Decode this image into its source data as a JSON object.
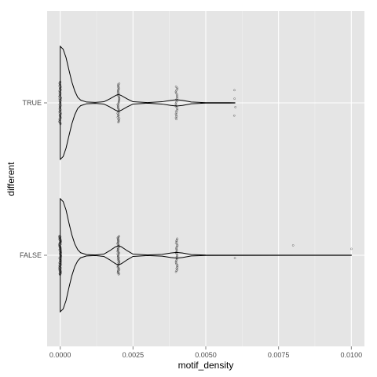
{
  "chart_data": {
    "type": "violin",
    "orientation": "horizontal",
    "xlabel": "motif_density",
    "ylabel": "different",
    "xlim": [
      -0.00045,
      0.01045
    ],
    "x_ticks": [
      0,
      0.0025,
      0.005,
      0.0075,
      0.01
    ],
    "x_tick_labels": [
      "0.0000",
      "0.0025",
      "0.0050",
      "0.0075",
      "0.0100"
    ],
    "categories": [
      "TRUE",
      "FALSE"
    ],
    "grid": true,
    "panel_background": "#e5e5e5",
    "grid_color": "#ffffff",
    "violin_color": "#000000",
    "point_color": "#000000",
    "groups": [
      {
        "category": "TRUE",
        "x_max": 0.006,
        "density_profile": [
          {
            "x": 0.0,
            "w": 1.0
          },
          {
            "x": 0.0001,
            "w": 0.95
          },
          {
            "x": 0.0002,
            "w": 0.8
          },
          {
            "x": 0.0003,
            "w": 0.58
          },
          {
            "x": 0.0004,
            "w": 0.37
          },
          {
            "x": 0.0005,
            "w": 0.21
          },
          {
            "x": 0.0006,
            "w": 0.1
          },
          {
            "x": 0.0007,
            "w": 0.05
          },
          {
            "x": 0.0009,
            "w": 0.015
          },
          {
            "x": 0.0012,
            "w": 0.008
          },
          {
            "x": 0.0015,
            "w": 0.02
          },
          {
            "x": 0.0017,
            "w": 0.07
          },
          {
            "x": 0.0019,
            "w": 0.13
          },
          {
            "x": 0.002,
            "w": 0.15
          },
          {
            "x": 0.0021,
            "w": 0.13
          },
          {
            "x": 0.0023,
            "w": 0.07
          },
          {
            "x": 0.0025,
            "w": 0.02
          },
          {
            "x": 0.003,
            "w": 0.006
          },
          {
            "x": 0.0035,
            "w": 0.02
          },
          {
            "x": 0.0038,
            "w": 0.045
          },
          {
            "x": 0.004,
            "w": 0.055
          },
          {
            "x": 0.0042,
            "w": 0.045
          },
          {
            "x": 0.0045,
            "w": 0.015
          },
          {
            "x": 0.005,
            "w": 0.004
          },
          {
            "x": 0.0058,
            "w": 0.003
          },
          {
            "x": 0.006,
            "w": 0.002
          }
        ],
        "point_columns": [
          {
            "x": 0.0,
            "spread": 0.6,
            "count": 60
          },
          {
            "x": 0.002,
            "spread": 0.55,
            "count": 40
          },
          {
            "x": 0.004,
            "spread": 0.46,
            "count": 26
          },
          {
            "x": 0.006,
            "spread": 0.36,
            "count": 4
          }
        ]
      },
      {
        "category": "FALSE",
        "x_max": 0.01,
        "density_profile": [
          {
            "x": 0.0,
            "w": 1.0
          },
          {
            "x": 0.0001,
            "w": 0.95
          },
          {
            "x": 0.0002,
            "w": 0.8
          },
          {
            "x": 0.0003,
            "w": 0.57
          },
          {
            "x": 0.0004,
            "w": 0.36
          },
          {
            "x": 0.0005,
            "w": 0.2
          },
          {
            "x": 0.0006,
            "w": 0.1
          },
          {
            "x": 0.0007,
            "w": 0.045
          },
          {
            "x": 0.0009,
            "w": 0.012
          },
          {
            "x": 0.0012,
            "w": 0.006
          },
          {
            "x": 0.0015,
            "w": 0.02
          },
          {
            "x": 0.0017,
            "w": 0.08
          },
          {
            "x": 0.0019,
            "w": 0.15
          },
          {
            "x": 0.002,
            "w": 0.17
          },
          {
            "x": 0.0021,
            "w": 0.15
          },
          {
            "x": 0.0023,
            "w": 0.08
          },
          {
            "x": 0.0025,
            "w": 0.02
          },
          {
            "x": 0.003,
            "w": 0.005
          },
          {
            "x": 0.0035,
            "w": 0.015
          },
          {
            "x": 0.0038,
            "w": 0.04
          },
          {
            "x": 0.004,
            "w": 0.05
          },
          {
            "x": 0.0042,
            "w": 0.04
          },
          {
            "x": 0.0045,
            "w": 0.012
          },
          {
            "x": 0.005,
            "w": 0.003
          },
          {
            "x": 0.008,
            "w": 0.002
          },
          {
            "x": 0.01,
            "w": 0.001
          }
        ],
        "point_columns": [
          {
            "x": 0.0,
            "spread": 0.55,
            "count": 90
          },
          {
            "x": 0.002,
            "spread": 0.54,
            "count": 50
          },
          {
            "x": 0.004,
            "spread": 0.47,
            "count": 30
          }
        ],
        "outliers": [
          {
            "x": 0.006,
            "offset": -0.04
          },
          {
            "x": 0.008,
            "offset": 0.14
          },
          {
            "x": 0.01,
            "offset": 0.09
          }
        ]
      }
    ]
  }
}
